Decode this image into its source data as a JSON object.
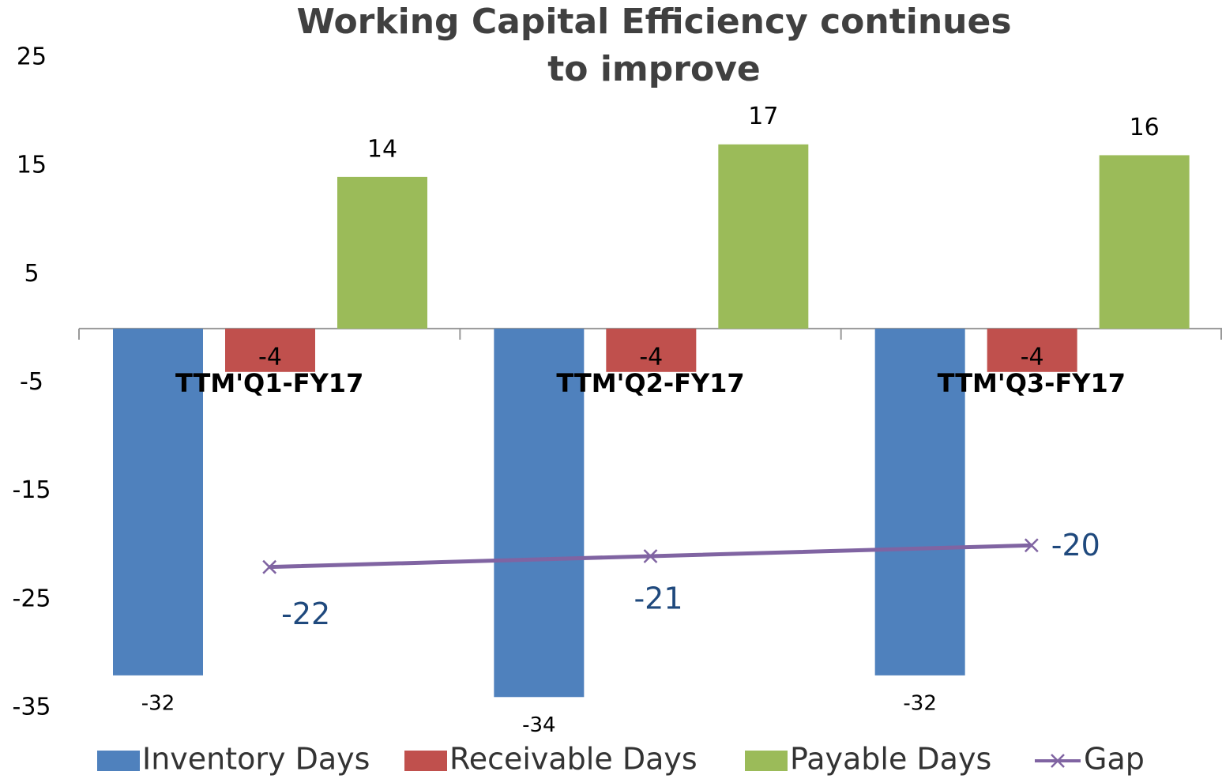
{
  "chart_data": {
    "type": "bar",
    "title": "Working Capital Efficiency continues to improve",
    "categories": [
      "TTM'Q1-FY17",
      "TTM'Q2-FY17",
      "TTM'Q3-FY17"
    ],
    "series": [
      {
        "name": "Inventory Days",
        "color": "#4f81bd",
        "values": [
          -32,
          -34,
          -32
        ]
      },
      {
        "name": "Receivable Days",
        "color": "#c0504d",
        "values": [
          -4,
          -4,
          -4
        ]
      },
      {
        "name": "Payable Days",
        "color": "#9bbb59",
        "values": [
          14,
          17,
          16
        ]
      },
      {
        "name": "Gap",
        "type": "line",
        "color": "#8064a2",
        "values": [
          -22,
          -21,
          -20
        ]
      }
    ],
    "ylim": [
      -35,
      25
    ],
    "yticks": [
      -35,
      -25,
      -15,
      -5,
      5,
      15,
      25
    ],
    "grid": false,
    "legend": "bottom"
  }
}
